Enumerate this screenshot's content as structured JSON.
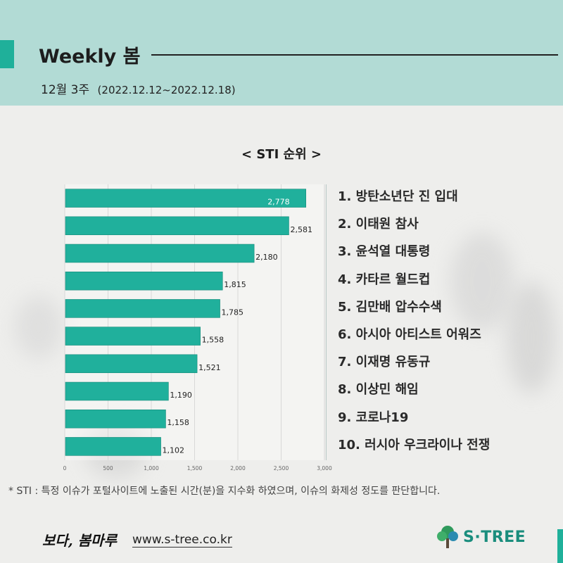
{
  "header": {
    "title": "Weekly 봄",
    "week": "12월 3주",
    "range": "(2022.12.12~2022.12.18)"
  },
  "chart_title": "< STI 순위 >",
  "chart_data": {
    "type": "bar",
    "orientation": "horizontal",
    "title": "< STI 순위 >",
    "categories": [
      "1. 방탄소년단 진 입대",
      "2. 이태원 참사",
      "3. 윤석열 대통령",
      "4. 카타르 월드컵",
      "5. 김만배 압수수색",
      "6. 아시아 아티스트 어워즈",
      "7. 이재명 유동규",
      "8. 이상민 해임",
      "9. 코로나19",
      "10. 러시아 우크라이나 전쟁"
    ],
    "values": [
      2778,
      2581,
      2180,
      1815,
      1785,
      1558,
      1521,
      1190,
      1158,
      1102
    ],
    "value_labels": [
      "2,778",
      "2,581",
      "2,180",
      "1,815",
      "1,785",
      "1,558",
      "1,521",
      "1,190",
      "1,158",
      "1,102"
    ],
    "x_ticks": [
      0,
      500,
      1000,
      1500,
      2000,
      2500,
      3000
    ],
    "x_tick_labels": [
      "0",
      "500",
      "1,000",
      "1,500",
      "2,000",
      "2,500",
      "3,000"
    ],
    "xlim": [
      0,
      3000
    ],
    "grid": true,
    "bar_color": "#20b09c",
    "xlabel": "",
    "ylabel": ""
  },
  "footnote": "* STI : 특정 이슈가 포털사이트에 노출된 시간(분)을 지수화 하였으며, 이슈의 화제성 정도를 판단합니다.",
  "footer": {
    "logo_text": "보다, 봄마루",
    "url": "www.s-tree.co.kr",
    "brand": "S·TREE",
    "brand_icon": "tree-icon"
  },
  "colors": {
    "accent": "#1fb09a",
    "header_bg": "#b2dbd5",
    "brand": "#1a8d7d"
  }
}
